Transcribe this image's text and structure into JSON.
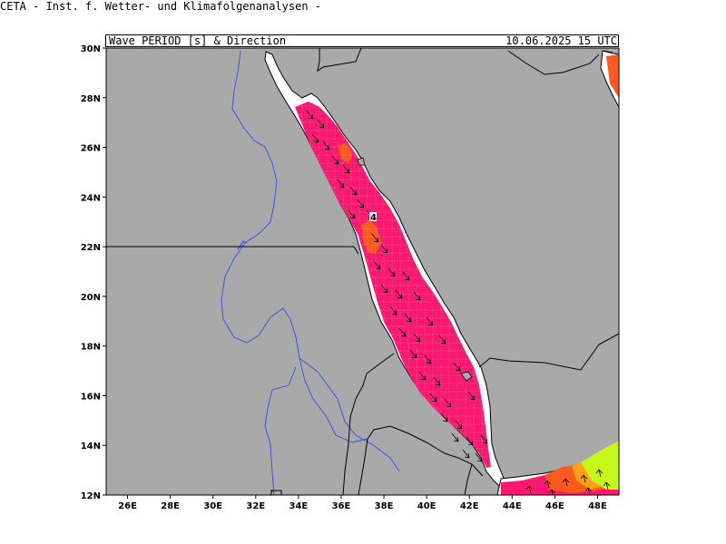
{
  "header": {
    "organization": "CETA - Inst. f. Wetter- und Klimafolgenanalysen -",
    "title": "Wave_PERIOD_[s]_&_Direction",
    "valid_time": "10.06.2025 15 UTC"
  },
  "map": {
    "lon_range": [
      25,
      49
    ],
    "lat_range": [
      12,
      30
    ],
    "lon_ticks": [
      "26E",
      "28E",
      "30E",
      "32E",
      "34E",
      "36E",
      "38E",
      "40E",
      "42E",
      "44E",
      "46E",
      "48E"
    ],
    "lat_ticks": [
      "30N",
      "28N",
      "26N",
      "24N",
      "22N",
      "20N",
      "18N",
      "16N",
      "14N",
      "12N"
    ],
    "colors": {
      "land": "#a9a9a9",
      "sea": "#ffffff",
      "period_main": "#ff1870",
      "period_high": "#ff5a1e",
      "period_mid": "#ff9f1a",
      "period_low": "#c6f81a",
      "rivers": "#3050e0",
      "borders": "#000000"
    },
    "max_label": "4"
  }
}
